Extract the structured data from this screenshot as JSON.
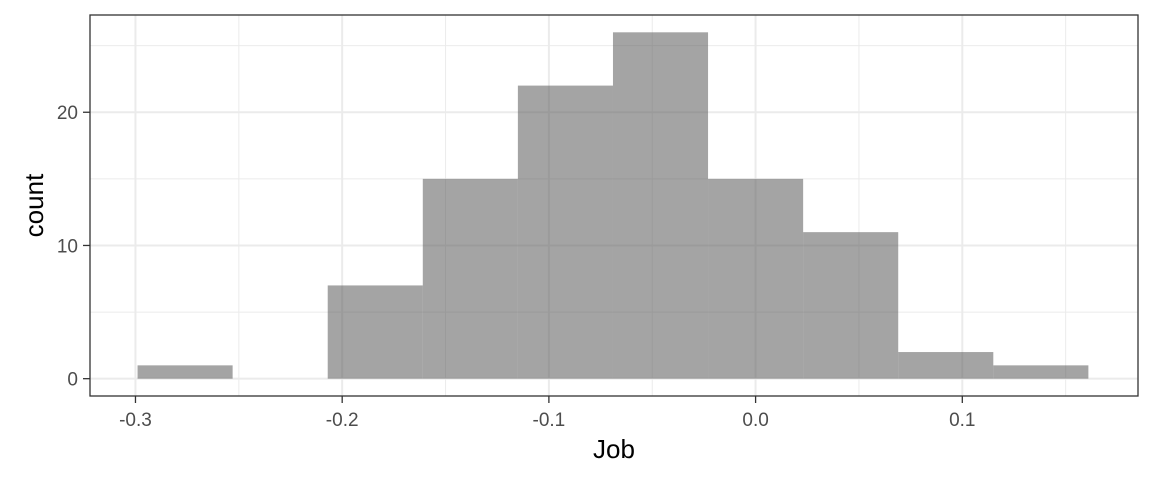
{
  "chart_data": {
    "type": "histogram",
    "xlabel": "Job",
    "ylabel": "count",
    "xlim": [
      -0.322,
      0.185
    ],
    "ylim": [
      -1.3,
      27.3
    ],
    "x_ticks": [
      -0.3,
      -0.2,
      -0.1,
      0.0,
      0.1
    ],
    "x_tick_labels": [
      "-0.3",
      "-0.2",
      "-0.1",
      "0.0",
      "0.1"
    ],
    "y_ticks": [
      0,
      10,
      20
    ],
    "y_tick_labels": [
      "0",
      "10",
      "20"
    ],
    "bin_edges": [
      -0.299,
      -0.253,
      -0.207,
      -0.161,
      -0.115,
      -0.069,
      -0.023,
      0.023,
      0.069,
      0.115,
      0.161
    ],
    "values": [
      1,
      0,
      7,
      15,
      22,
      26,
      15,
      11,
      2,
      1
    ],
    "bar_color": "#595959",
    "grid": true
  }
}
